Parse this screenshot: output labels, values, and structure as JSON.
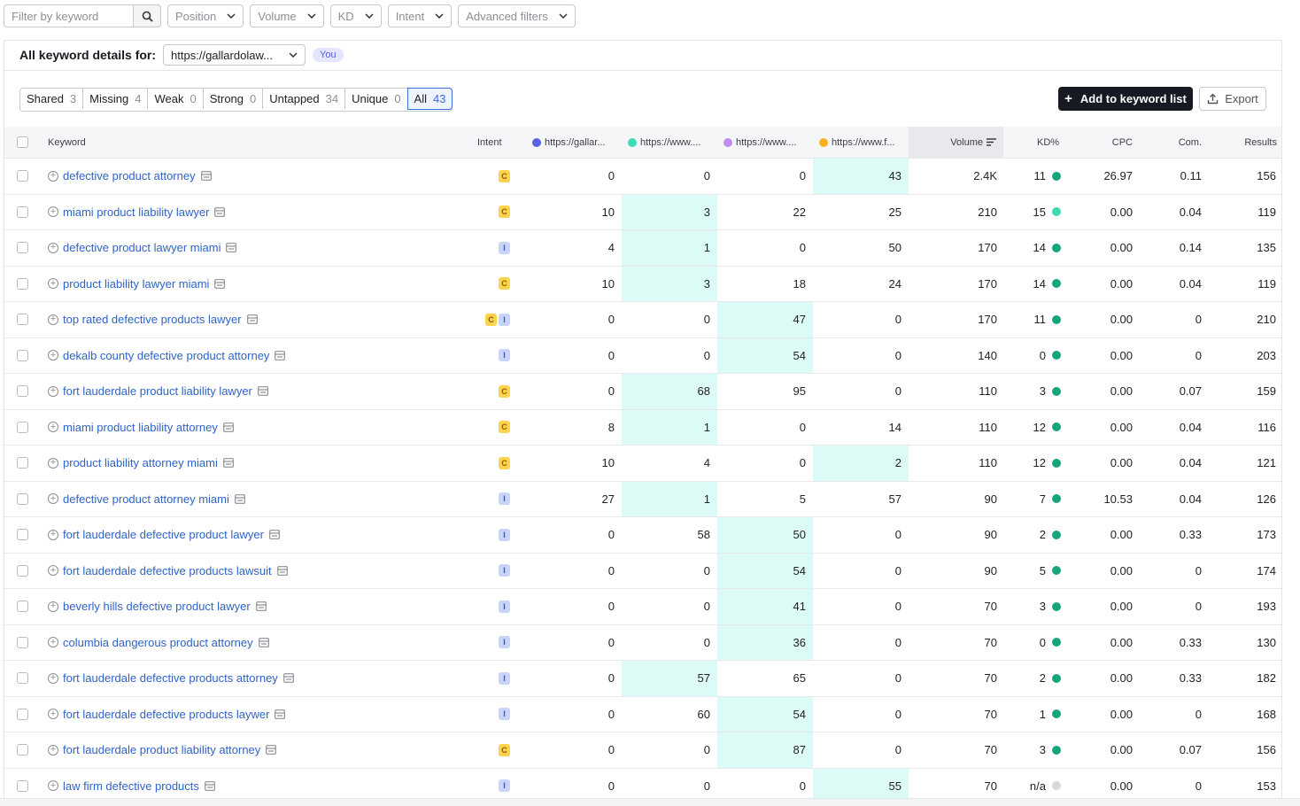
{
  "filters": {
    "search_placeholder": "Filter by keyword",
    "dropdowns": [
      "Position",
      "Volume",
      "KD",
      "Intent",
      "Advanced filters"
    ]
  },
  "details": {
    "title": "All keyword details for:",
    "domain": "https://gallardolaw...",
    "you_badge": "You"
  },
  "tabs": [
    {
      "label": "Shared",
      "count": "3"
    },
    {
      "label": "Missing",
      "count": "4"
    },
    {
      "label": "Weak",
      "count": "0"
    },
    {
      "label": "Strong",
      "count": "0"
    },
    {
      "label": "Untapped",
      "count": "34"
    },
    {
      "label": "Unique",
      "count": "0"
    },
    {
      "label": "All",
      "count": "43",
      "active": true
    }
  ],
  "actions": {
    "add_label": "Add to keyword list",
    "export_label": "Export"
  },
  "columns": {
    "keyword": "Keyword",
    "intent": "Intent",
    "domains": [
      {
        "label": "https://gallar...",
        "color": "#5b62e6"
      },
      {
        "label": "https://www....",
        "color": "#3fdcb7"
      },
      {
        "label": "https://www....",
        "color": "#c08cf2"
      },
      {
        "label": "https://www.f...",
        "color": "#fbb01f"
      }
    ],
    "volume": "Volume",
    "kd": "KD%",
    "cpc": "CPC",
    "com": "Com.",
    "results": "Results"
  },
  "colors": {
    "kd_green": "#16a57a",
    "kd_light": "#3ed8b3",
    "kd_none": "#d6d8dc",
    "highlight": "#ddfbf6",
    "link": "#2f63c7"
  },
  "rows": [
    {
      "keyword": "defective product attorney",
      "intent": [
        "C"
      ],
      "pos": [
        "0",
        "0",
        "0",
        "43"
      ],
      "hl": 3,
      "volume": "2.4K",
      "kd": "11",
      "kd_color": "green",
      "cpc": "26.97",
      "com": "0.11",
      "results": "156"
    },
    {
      "keyword": "miami product liability lawyer",
      "intent": [
        "C"
      ],
      "pos": [
        "10",
        "3",
        "22",
        "25"
      ],
      "hl": 1,
      "volume": "210",
      "kd": "15",
      "kd_color": "light",
      "cpc": "0.00",
      "com": "0.04",
      "results": "119"
    },
    {
      "keyword": "defective product lawyer miami",
      "intent": [
        "I"
      ],
      "pos": [
        "4",
        "1",
        "0",
        "50"
      ],
      "hl": 1,
      "volume": "170",
      "kd": "14",
      "kd_color": "green",
      "cpc": "0.00",
      "com": "0.14",
      "results": "135"
    },
    {
      "keyword": "product liability lawyer miami",
      "intent": [
        "C"
      ],
      "pos": [
        "10",
        "3",
        "18",
        "24"
      ],
      "hl": 1,
      "volume": "170",
      "kd": "14",
      "kd_color": "green",
      "cpc": "0.00",
      "com": "0.04",
      "results": "119"
    },
    {
      "keyword": "top rated defective products lawyer",
      "intent": [
        "C",
        "I"
      ],
      "pos": [
        "0",
        "0",
        "47",
        "0"
      ],
      "hl": 2,
      "volume": "170",
      "kd": "11",
      "kd_color": "green",
      "cpc": "0.00",
      "com": "0",
      "results": "210"
    },
    {
      "keyword": "dekalb county defective product attorney",
      "intent": [
        "I"
      ],
      "pos": [
        "0",
        "0",
        "54",
        "0"
      ],
      "hl": 2,
      "volume": "140",
      "kd": "0",
      "kd_color": "green",
      "cpc": "0.00",
      "com": "0",
      "results": "203"
    },
    {
      "keyword": "fort lauderdale product liability lawyer",
      "intent": [
        "C"
      ],
      "pos": [
        "0",
        "68",
        "95",
        "0"
      ],
      "hl": 1,
      "volume": "110",
      "kd": "3",
      "kd_color": "green",
      "cpc": "0.00",
      "com": "0.07",
      "results": "159"
    },
    {
      "keyword": "miami product liability attorney",
      "intent": [
        "C"
      ],
      "pos": [
        "8",
        "1",
        "0",
        "14"
      ],
      "hl": 1,
      "volume": "110",
      "kd": "12",
      "kd_color": "green",
      "cpc": "0.00",
      "com": "0.04",
      "results": "116"
    },
    {
      "keyword": "product liability attorney miami",
      "intent": [
        "C"
      ],
      "pos": [
        "10",
        "4",
        "0",
        "2"
      ],
      "hl": 3,
      "volume": "110",
      "kd": "12",
      "kd_color": "green",
      "cpc": "0.00",
      "com": "0.04",
      "results": "121"
    },
    {
      "keyword": "defective product attorney miami",
      "intent": [
        "I"
      ],
      "pos": [
        "27",
        "1",
        "5",
        "57"
      ],
      "hl": 1,
      "volume": "90",
      "kd": "7",
      "kd_color": "green",
      "cpc": "10.53",
      "com": "0.04",
      "results": "126"
    },
    {
      "keyword": "fort lauderdale defective product lawyer",
      "intent": [
        "I"
      ],
      "pos": [
        "0",
        "58",
        "50",
        "0"
      ],
      "hl": 2,
      "volume": "90",
      "kd": "2",
      "kd_color": "green",
      "cpc": "0.00",
      "com": "0.33",
      "results": "173"
    },
    {
      "keyword": "fort lauderdale defective products lawsuit",
      "intent": [
        "I"
      ],
      "pos": [
        "0",
        "0",
        "54",
        "0"
      ],
      "hl": 2,
      "volume": "90",
      "kd": "5",
      "kd_color": "green",
      "cpc": "0.00",
      "com": "0",
      "results": "174"
    },
    {
      "keyword": "beverly hills defective product lawyer",
      "intent": [
        "I"
      ],
      "pos": [
        "0",
        "0",
        "41",
        "0"
      ],
      "hl": 2,
      "volume": "70",
      "kd": "3",
      "kd_color": "green",
      "cpc": "0.00",
      "com": "0",
      "results": "193"
    },
    {
      "keyword": "columbia dangerous product attorney",
      "intent": [
        "I"
      ],
      "pos": [
        "0",
        "0",
        "36",
        "0"
      ],
      "hl": 2,
      "volume": "70",
      "kd": "0",
      "kd_color": "green",
      "cpc": "0.00",
      "com": "0.33",
      "results": "130"
    },
    {
      "keyword": "fort lauderdale defective products attorney",
      "intent": [
        "I"
      ],
      "pos": [
        "0",
        "57",
        "65",
        "0"
      ],
      "hl": 1,
      "volume": "70",
      "kd": "2",
      "kd_color": "green",
      "cpc": "0.00",
      "com": "0.33",
      "results": "182"
    },
    {
      "keyword": "fort lauderdale defective products laywer",
      "intent": [
        "I"
      ],
      "pos": [
        "0",
        "60",
        "54",
        "0"
      ],
      "hl": 2,
      "volume": "70",
      "kd": "1",
      "kd_color": "green",
      "cpc": "0.00",
      "com": "0",
      "results": "168"
    },
    {
      "keyword": "fort lauderdale product liability attorney",
      "intent": [
        "C"
      ],
      "pos": [
        "0",
        "0",
        "87",
        "0"
      ],
      "hl": 2,
      "volume": "70",
      "kd": "3",
      "kd_color": "green",
      "cpc": "0.00",
      "com": "0.07",
      "results": "156"
    },
    {
      "keyword": "law firm defective products",
      "intent": [
        "I"
      ],
      "pos": [
        "0",
        "0",
        "0",
        "55"
      ],
      "hl": 3,
      "volume": "70",
      "kd": "n/a",
      "kd_color": "none",
      "cpc": "0.00",
      "com": "0",
      "results": "153"
    }
  ]
}
